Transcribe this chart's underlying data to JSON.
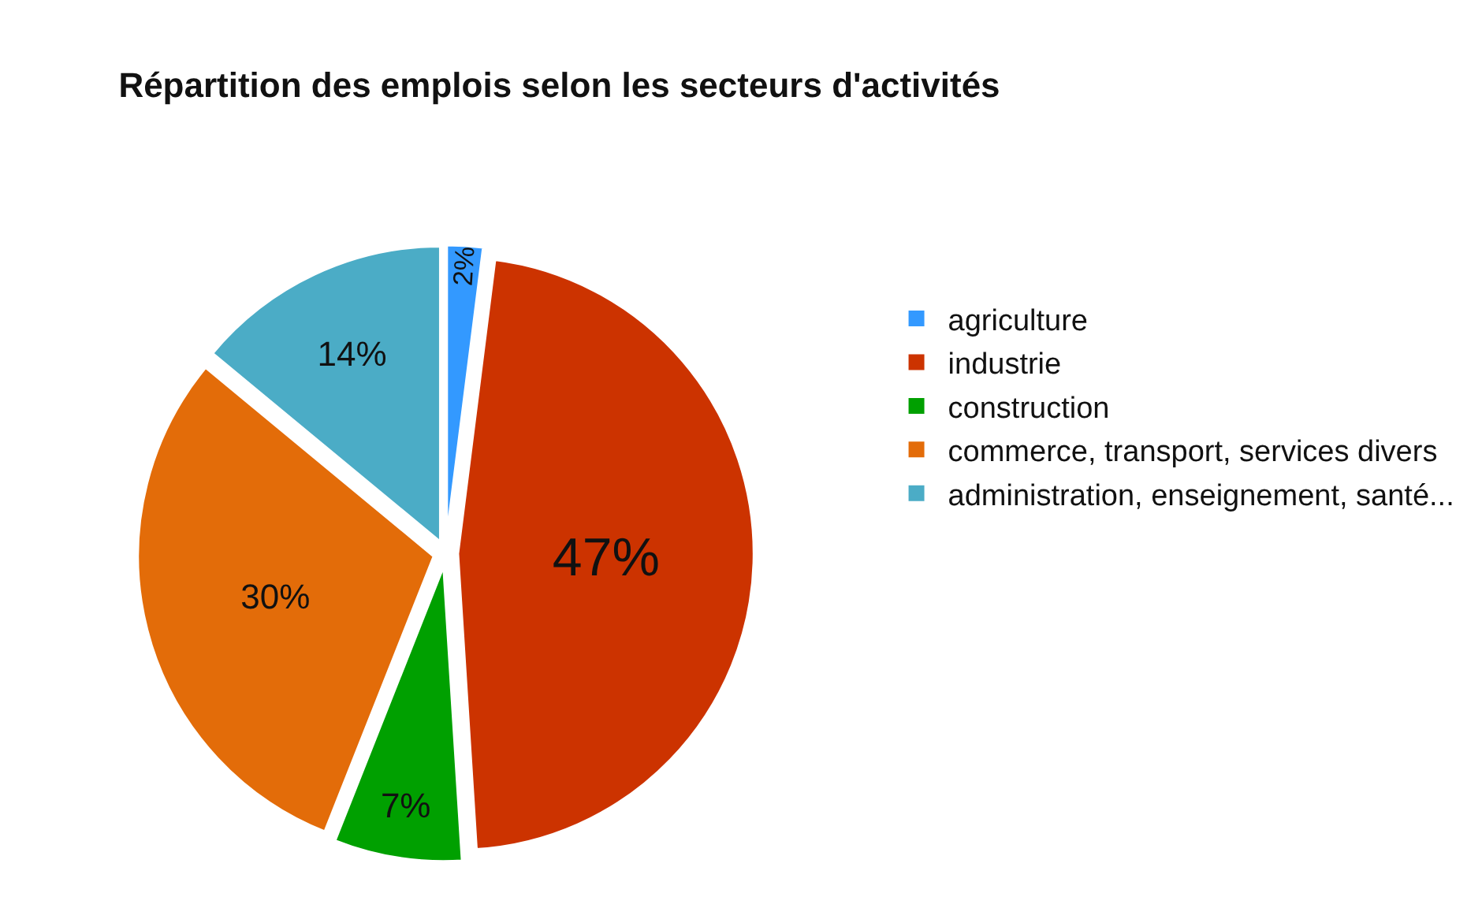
{
  "chart_data": {
    "type": "pie",
    "title": "Répartition des emplois selon les secteurs d'activités",
    "categories": [
      "agriculture",
      "industrie",
      "construction",
      "commerce, transport, services divers",
      "administration, enseignement, santé..."
    ],
    "values": [
      2,
      47,
      7,
      30,
      14
    ],
    "value_labels": [
      "2%",
      "47%",
      "7%",
      "30%",
      "14%"
    ],
    "colors": [
      "#3399ff",
      "#cc3300",
      "#00a000",
      "#e36c09",
      "#4bacc6"
    ],
    "legend": "right"
  }
}
